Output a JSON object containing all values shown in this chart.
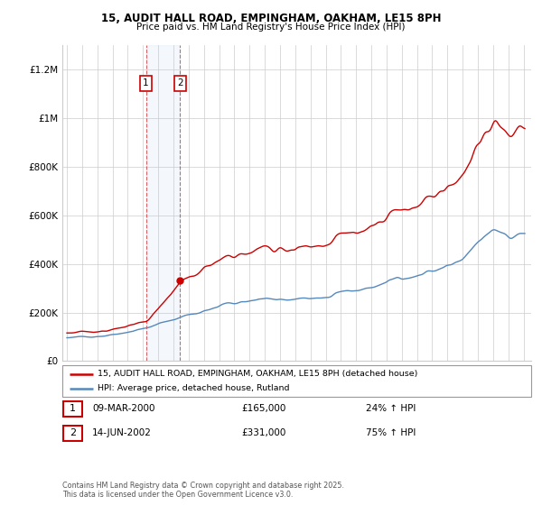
{
  "title_line1": "15, AUDIT HALL ROAD, EMPINGHAM, OAKHAM, LE15 8PH",
  "title_line2": "Price paid vs. HM Land Registry's House Price Index (HPI)",
  "legend_label_red": "15, AUDIT HALL ROAD, EMPINGHAM, OAKHAM, LE15 8PH (detached house)",
  "legend_label_blue": "HPI: Average price, detached house, Rutland",
  "annotation1_num": "1",
  "annotation1_date": "09-MAR-2000",
  "annotation1_price": "£165,000",
  "annotation1_hpi": "24% ↑ HPI",
  "annotation2_num": "2",
  "annotation2_date": "14-JUN-2002",
  "annotation2_price": "£331,000",
  "annotation2_hpi": "75% ↑ HPI",
  "footnote": "Contains HM Land Registry data © Crown copyright and database right 2025.\nThis data is licensed under the Open Government Licence v3.0.",
  "ylim": [
    0,
    1300000
  ],
  "yticks": [
    0,
    200000,
    400000,
    600000,
    800000,
    1000000,
    1200000
  ],
  "ytick_labels": [
    "£0",
    "£200K",
    "£400K",
    "£600K",
    "£800K",
    "£1M",
    "£1.2M"
  ],
  "red_color": "#cc0000",
  "blue_color": "#5588bb",
  "vline1_x": 2000.19,
  "vline2_x": 2002.44,
  "purchase1_y": 165000,
  "purchase2_y": 331000,
  "shade_x1": 2000.19,
  "shade_x2": 2002.44,
  "xmin": 1994.7,
  "xmax": 2025.5
}
